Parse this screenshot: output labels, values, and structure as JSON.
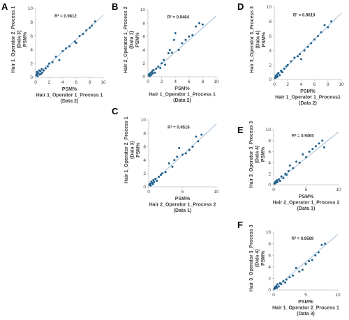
{
  "colors": {
    "point": "#1f5f8b",
    "fit_line": "#9ab8d3",
    "axis": "#bfbfbf"
  },
  "chart_data": [
    {
      "type": "scatter",
      "panel": "A",
      "xlabel": [
        "PSM%",
        "Hair 1_Operator 1_Process 1",
        "(Data 2)"
      ],
      "ylabel": [
        "Hair 1_Operator 2_Process 1",
        "(Data 3)",
        "PSM%"
      ],
      "xlim": [
        0,
        10
      ],
      "ylim": [
        0,
        10
      ],
      "xticks": [
        0,
        2,
        4,
        6,
        8,
        10
      ],
      "yticks": [
        0,
        2,
        4,
        6,
        8,
        10
      ],
      "r2_text": "R² = 0.9812",
      "fit": {
        "slope": 0.88,
        "intercept": 0.2
      },
      "x": [
        0.1,
        0.2,
        0.2,
        0.3,
        0.4,
        0.5,
        0.6,
        0.7,
        0.8,
        0.9,
        1.0,
        1.2,
        1.5,
        1.8,
        2.0,
        2.5,
        3.0,
        3.5,
        4.0,
        4.5,
        5.0,
        5.8,
        6.0,
        6.5,
        7.0,
        7.5,
        8.0,
        8.3,
        8.8
      ],
      "y": [
        0.3,
        0.5,
        0.8,
        0.2,
        0.6,
        1.0,
        0.4,
        0.9,
        0.5,
        1.2,
        0.7,
        1.0,
        1.3,
        1.6,
        2.0,
        2.2,
        3.0,
        2.5,
        3.8,
        4.2,
        4.5,
        5.2,
        5.0,
        6.0,
        6.3,
        6.8,
        7.2,
        7.5,
        8.1
      ]
    },
    {
      "type": "scatter",
      "panel": "B",
      "xlabel": [
        "PSM%",
        "Hair 1_Operator 1_Process 1",
        "(Data 2)"
      ],
      "ylabel": [
        "Hair 2_Operator 1_Process 2",
        "(Data 1)",
        "PSM%"
      ],
      "xlim": [
        0,
        10
      ],
      "ylim": [
        0,
        10
      ],
      "xticks": [
        0,
        2,
        4,
        6,
        8,
        10
      ],
      "yticks": [
        0,
        2,
        4,
        6,
        8,
        10
      ],
      "r2_text": "R² = 0.9464",
      "fit": {
        "slope": 0.9,
        "intercept": 0.1
      },
      "x": [
        0.1,
        0.2,
        0.3,
        0.4,
        0.5,
        0.6,
        0.7,
        0.8,
        1.0,
        1.2,
        1.5,
        1.8,
        2.0,
        2.3,
        2.5,
        3.0,
        3.2,
        3.5,
        3.8,
        4.0,
        4.5,
        5.0,
        5.5,
        6.0,
        6.5,
        7.0,
        7.5,
        8.0
      ],
      "y": [
        0.2,
        0.4,
        0.1,
        0.6,
        0.3,
        0.8,
        0.5,
        1.0,
        0.6,
        1.2,
        1.5,
        1.3,
        2.0,
        2.5,
        1.8,
        3.5,
        4.0,
        3.6,
        5.5,
        6.5,
        4.0,
        5.0,
        5.5,
        6.0,
        6.2,
        7.5,
        8.0,
        7.8
      ]
    },
    {
      "type": "scatter",
      "panel": "C",
      "xlabel": [
        "PSM%",
        "Hair 2_Operator 1_Process 2",
        "(Data 1)"
      ],
      "ylabel": [
        "Hair 1_Operator 2_Process 1",
        "(Data 3)",
        "PSM%"
      ],
      "xlim": [
        0,
        10
      ],
      "ylim": [
        0,
        10
      ],
      "xticks": [
        0,
        5,
        10
      ],
      "yticks": [
        0,
        2,
        4,
        6,
        8,
        10
      ],
      "r2_text": "R² = 0.9516",
      "fit": {
        "slope": 0.93,
        "intercept": 0.1
      },
      "x": [
        0.1,
        0.2,
        0.3,
        0.4,
        0.5,
        0.6,
        0.7,
        0.8,
        1.0,
        1.2,
        1.5,
        1.8,
        2.0,
        2.5,
        3.0,
        3.5,
        3.8,
        4.2,
        4.5,
        5.0,
        5.5,
        6.0,
        6.5,
        7.0,
        7.3,
        7.8
      ],
      "y": [
        0.3,
        0.5,
        0.2,
        0.8,
        0.6,
        0.4,
        1.0,
        0.7,
        1.2,
        0.9,
        1.5,
        1.8,
        2.0,
        2.2,
        3.5,
        3.0,
        4.0,
        4.5,
        5.8,
        4.8,
        5.0,
        5.5,
        6.0,
        7.5,
        6.8,
        7.8
      ]
    },
    {
      "type": "scatter",
      "panel": "D",
      "xlabel": [
        "PSM%",
        "Hair 1_Operator 1_Process1",
        "(Data 2)"
      ],
      "ylabel": [
        "Hair 3_Operator 3_Process 3",
        "(Data 4)",
        "PSM%"
      ],
      "xlim": [
        0,
        10
      ],
      "ylim": [
        0,
        10
      ],
      "xticks": [
        0,
        2,
        4,
        6,
        8,
        10
      ],
      "yticks": [
        0,
        2,
        4,
        6,
        8,
        10
      ],
      "r2_text": "R² = 0.9619",
      "fit": {
        "slope": 0.9,
        "intercept": 0.15
      },
      "x": [
        0.1,
        0.2,
        0.3,
        0.4,
        0.5,
        0.6,
        0.8,
        1.0,
        1.2,
        1.5,
        1.8,
        2.0,
        2.5,
        3.0,
        3.5,
        3.8,
        4.0,
        4.5,
        5.0,
        5.5,
        6.0,
        6.5,
        7.0,
        7.5,
        8.0,
        8.5
      ],
      "y": [
        0.2,
        0.5,
        0.3,
        0.7,
        0.4,
        0.9,
        0.6,
        1.2,
        1.0,
        1.5,
        1.8,
        2.0,
        2.5,
        3.0,
        3.2,
        3.5,
        2.8,
        4.0,
        4.5,
        5.0,
        5.5,
        6.0,
        6.5,
        7.5,
        7.2,
        8.0
      ]
    },
    {
      "type": "scatter",
      "panel": "E",
      "xlabel": [
        "PSM%",
        "Hair 2_Operator 1_Process 2",
        "(Data 1)"
      ],
      "ylabel": [
        "Hair 3_Operator 3_Process 3",
        "(Data 4)",
        "PSM%"
      ],
      "xlim": [
        0,
        10
      ],
      "ylim": [
        0,
        10
      ],
      "xticks": [
        0,
        5,
        10
      ],
      "yticks": [
        0,
        2,
        4,
        6,
        8,
        10
      ],
      "r2_text": "R² = 0.9465",
      "fit": {
        "slope": 0.95,
        "intercept": 0.1
      },
      "x": [
        0.1,
        0.2,
        0.3,
        0.4,
        0.5,
        0.6,
        0.8,
        1.0,
        1.2,
        1.5,
        1.8,
        2.0,
        2.3,
        2.5,
        3.0,
        3.5,
        4.0,
        4.5,
        5.0,
        5.5,
        6.0,
        6.5,
        7.0,
        7.5,
        7.8
      ],
      "y": [
        0.3,
        0.2,
        0.6,
        0.4,
        0.8,
        0.5,
        1.0,
        0.7,
        1.5,
        1.2,
        2.0,
        1.8,
        2.5,
        3.5,
        3.0,
        4.2,
        4.0,
        5.5,
        5.0,
        6.0,
        6.5,
        7.0,
        7.5,
        8.0,
        6.8
      ]
    },
    {
      "type": "scatter",
      "panel": "F",
      "xlabel": [
        "PSM%",
        "Hair 1_Operator 2_Process 1",
        "(Data 3)"
      ],
      "ylabel": [
        "Hair 3_Operator 3_Process 3",
        "(Data 4)",
        "PSM%"
      ],
      "xlim": [
        0,
        10
      ],
      "ylim": [
        0,
        10
      ],
      "xticks": [
        0,
        5,
        10
      ],
      "yticks": [
        0,
        2,
        4,
        6,
        8,
        10
      ],
      "r2_text": "R² = 0.9569",
      "fit": {
        "slope": 0.95,
        "intercept": 0.1
      },
      "x": [
        0.1,
        0.2,
        0.3,
        0.4,
        0.5,
        0.6,
        0.8,
        1.0,
        1.2,
        1.5,
        1.8,
        2.0,
        2.5,
        3.0,
        3.5,
        4.0,
        4.5,
        5.0,
        5.5,
        6.0,
        6.5,
        7.0,
        7.5,
        8.0
      ],
      "y": [
        0.2,
        0.5,
        0.3,
        0.7,
        0.4,
        1.0,
        0.6,
        1.2,
        1.0,
        1.5,
        1.3,
        1.8,
        2.2,
        2.5,
        3.8,
        3.2,
        3.5,
        4.5,
        5.0,
        5.2,
        6.0,
        6.5,
        7.8,
        8.0
      ]
    }
  ]
}
